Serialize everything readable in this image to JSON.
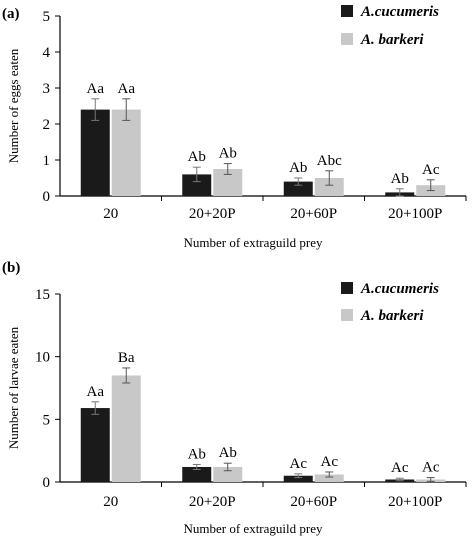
{
  "chart_data": [
    {
      "type": "bar",
      "panel_label": "(a)",
      "title": "",
      "xlabel": "Number of extraguild prey",
      "ylabel": "Number of eggs eaten",
      "ylim": [
        0,
        5
      ],
      "yticks": [
        "0",
        "1",
        "2",
        "3",
        "4",
        "5"
      ],
      "categories": [
        "20",
        "20+20P",
        "20+60P",
        "20+100P"
      ],
      "legend_position": "top-right",
      "series": [
        {
          "name": "A.cucumeris",
          "color": "#1a1a1a",
          "values": [
            2.4,
            0.6,
            0.4,
            0.1
          ],
          "errors": [
            0.3,
            0.2,
            0.1,
            0.1
          ],
          "labels": [
            "Aa",
            "Ab",
            "Ab",
            "Ab"
          ]
        },
        {
          "name": "A. barkeri",
          "color": "#c8c8c8",
          "values": [
            2.4,
            0.75,
            0.5,
            0.3
          ],
          "errors": [
            0.3,
            0.15,
            0.2,
            0.15
          ],
          "labels": [
            "Aa",
            "Ab",
            "Abc",
            "Ac"
          ]
        }
      ]
    },
    {
      "type": "bar",
      "panel_label": "(b)",
      "title": "",
      "xlabel": "Number of extraguild prey",
      "ylabel": "Number of larvae eaten",
      "ylim": [
        0,
        15
      ],
      "yticks": [
        "0",
        "5",
        "10",
        "15"
      ],
      "categories": [
        "20",
        "20+20P",
        "20+60P",
        "20+100P"
      ],
      "legend_position": "top-right",
      "series": [
        {
          "name": "A.cucumeris",
          "color": "#1a1a1a",
          "values": [
            5.9,
            1.2,
            0.5,
            0.2
          ],
          "errors": [
            0.5,
            0.2,
            0.15,
            0.1
          ],
          "labels": [
            "Aa",
            "Ab",
            "Ac",
            "Ac"
          ]
        },
        {
          "name": "A. barkeri",
          "color": "#c8c8c8",
          "values": [
            8.5,
            1.2,
            0.6,
            0.2
          ],
          "errors": [
            0.6,
            0.3,
            0.2,
            0.15
          ],
          "labels": [
            "Ba",
            "Ab",
            "Ac",
            "Ac"
          ]
        }
      ]
    }
  ]
}
